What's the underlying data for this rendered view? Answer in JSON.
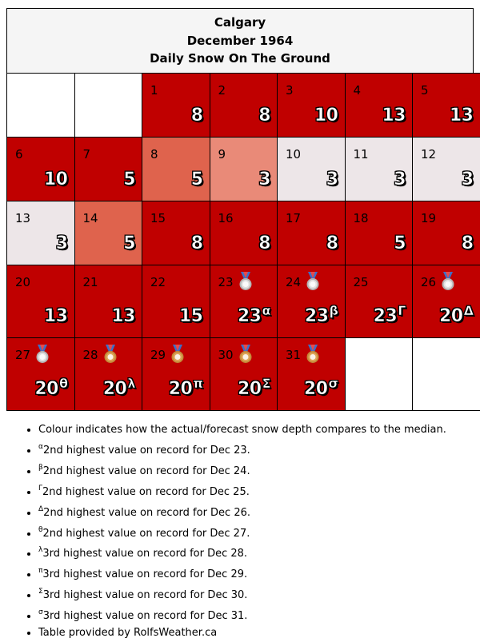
{
  "header": {
    "city": "Calgary",
    "month": "December 1964",
    "subtitle": "Daily Snow On The Ground"
  },
  "colors": {
    "dark_red": "#c00000",
    "mid_red": "#df634d",
    "light_red": "#e98a78",
    "light_grey": "#ede6e8",
    "empty": "#ffffff"
  },
  "weeks": [
    [
      {
        "day": "",
        "value": "",
        "sup": "",
        "color": "#ffffff"
      },
      {
        "day": "",
        "value": "",
        "sup": "",
        "color": "#ffffff"
      },
      {
        "day": "1",
        "value": "8",
        "sup": "",
        "color": "#c00000"
      },
      {
        "day": "2",
        "value": "8",
        "sup": "",
        "color": "#c00000"
      },
      {
        "day": "3",
        "value": "10",
        "sup": "",
        "color": "#c00000"
      },
      {
        "day": "4",
        "value": "13",
        "sup": "",
        "color": "#c00000"
      },
      {
        "day": "5",
        "value": "13",
        "sup": "",
        "color": "#c00000"
      }
    ],
    [
      {
        "day": "6",
        "value": "10",
        "sup": "",
        "color": "#c00000"
      },
      {
        "day": "7",
        "value": "5",
        "sup": "",
        "color": "#c00000"
      },
      {
        "day": "8",
        "value": "5",
        "sup": "",
        "color": "#df634d"
      },
      {
        "day": "9",
        "value": "3",
        "sup": "",
        "color": "#e98a78"
      },
      {
        "day": "10",
        "value": "3",
        "sup": "",
        "color": "#ede6e8"
      },
      {
        "day": "11",
        "value": "3",
        "sup": "",
        "color": "#ede6e8"
      },
      {
        "day": "12",
        "value": "3",
        "sup": "",
        "color": "#ede6e8"
      }
    ],
    [
      {
        "day": "13",
        "value": "3",
        "sup": "",
        "color": "#ede6e8"
      },
      {
        "day": "14",
        "value": "5",
        "sup": "",
        "color": "#df634d"
      },
      {
        "day": "15",
        "value": "8",
        "sup": "",
        "color": "#c00000"
      },
      {
        "day": "16",
        "value": "8",
        "sup": "",
        "color": "#c00000"
      },
      {
        "day": "17",
        "value": "8",
        "sup": "",
        "color": "#c00000"
      },
      {
        "day": "18",
        "value": "5",
        "sup": "",
        "color": "#c00000"
      },
      {
        "day": "19",
        "value": "8",
        "sup": "",
        "color": "#c00000"
      }
    ],
    [
      {
        "day": "20",
        "value": "13",
        "sup": "",
        "color": "#c00000"
      },
      {
        "day": "21",
        "value": "13",
        "sup": "",
        "color": "#c00000"
      },
      {
        "day": "22",
        "value": "15",
        "sup": "",
        "color": "#c00000"
      },
      {
        "day": "23",
        "value": "23",
        "sup": "α",
        "color": "#c00000",
        "medal": "silver"
      },
      {
        "day": "24",
        "value": "23",
        "sup": "β",
        "color": "#c00000",
        "medal": "silver"
      },
      {
        "day": "25",
        "value": "23",
        "sup": "Γ",
        "color": "#c00000"
      },
      {
        "day": "26",
        "value": "20",
        "sup": "Δ",
        "color": "#c00000",
        "medal": "silver"
      }
    ],
    [
      {
        "day": "27",
        "value": "20",
        "sup": "θ",
        "color": "#c00000",
        "medal": "silver"
      },
      {
        "day": "28",
        "value": "20",
        "sup": "λ",
        "color": "#c00000",
        "medal": "bronze"
      },
      {
        "day": "29",
        "value": "20",
        "sup": "π",
        "color": "#c00000",
        "medal": "bronze"
      },
      {
        "day": "30",
        "value": "20",
        "sup": "Σ",
        "color": "#c00000",
        "medal": "bronze"
      },
      {
        "day": "31",
        "value": "20",
        "sup": "σ",
        "color": "#c00000",
        "medal": "bronze"
      },
      {
        "day": "",
        "value": "",
        "sup": "",
        "color": "#ffffff"
      },
      {
        "day": "",
        "value": "",
        "sup": "",
        "color": "#ffffff"
      }
    ]
  ],
  "notes": [
    {
      "sup": "",
      "text": "Colour indicates how the actual/forecast snow depth compares to the median."
    },
    {
      "sup": "α",
      "text": "2nd highest value on record for Dec 23."
    },
    {
      "sup": "β",
      "text": "2nd highest value on record for Dec 24."
    },
    {
      "sup": "Γ",
      "text": "2nd highest value on record for Dec 25."
    },
    {
      "sup": "Δ",
      "text": "2nd highest value on record for Dec 26."
    },
    {
      "sup": "θ",
      "text": "2nd highest value on record for Dec 27."
    },
    {
      "sup": "λ",
      "text": "3rd highest value on record for Dec 28."
    },
    {
      "sup": "π",
      "text": "3rd highest value on record for Dec 29."
    },
    {
      "sup": "Σ",
      "text": "3rd highest value on record for Dec 30."
    },
    {
      "sup": "σ",
      "text": "3rd highest value on record for Dec 31."
    },
    {
      "sup": "",
      "text": "Table provided by RolfsWeather.ca"
    }
  ]
}
